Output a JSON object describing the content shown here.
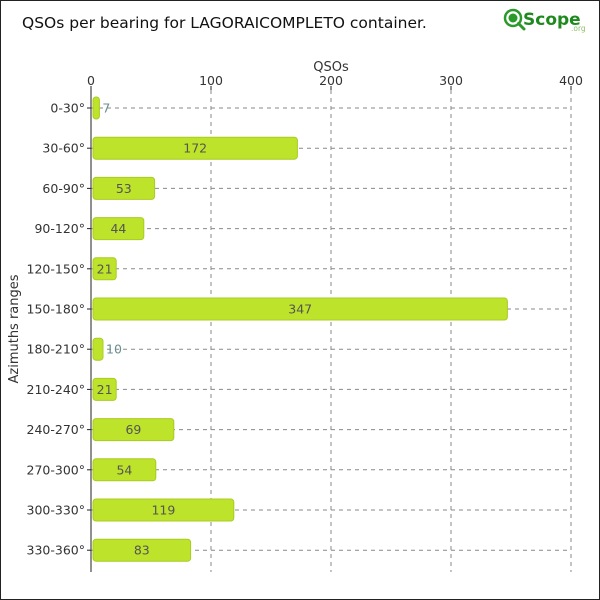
{
  "colors": {
    "bar": "#bde32b",
    "bar_stroke": "#a9cc22",
    "label_inside": "#555555",
    "label_outside": "#6a8e8e",
    "logo_green": "#2a9a2a",
    "logo_text": "#1e8a1e"
  },
  "logo": {
    "text": "Scope",
    "suffix": ".org",
    "icon": "magnifier-globe-icon"
  },
  "chart_data": {
    "type": "bar",
    "orientation": "horizontal",
    "title": "QSOs per bearing for LAGORAICOMPLETO container.",
    "xlabel": "QSOs",
    "ylabel": "Azimuths ranges",
    "xlim": [
      0,
      400
    ],
    "xticks": [
      0,
      100,
      200,
      300,
      400
    ],
    "x_axis_position": "top",
    "grid": true,
    "categories": [
      "0-30°",
      "30-60°",
      "60-90°",
      "90-120°",
      "120-150°",
      "150-180°",
      "180-210°",
      "210-240°",
      "240-270°",
      "270-300°",
      "300-330°",
      "330-360°"
    ],
    "values": [
      7,
      172,
      53,
      44,
      21,
      347,
      10,
      21,
      69,
      54,
      119,
      83
    ]
  }
}
